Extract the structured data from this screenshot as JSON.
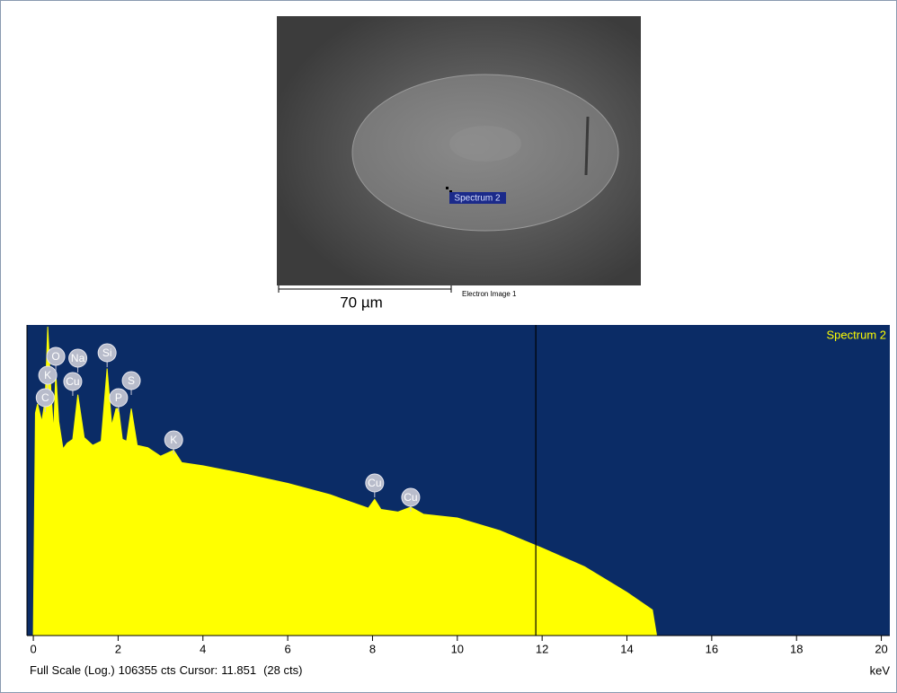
{
  "image": {
    "site_label": "Spectrum 2",
    "scale_bar": "70 µm",
    "caption": "Electron Image 1"
  },
  "chart_data": {
    "type": "area",
    "log_scale": true,
    "x": [
      0,
      0.05,
      0.1,
      0.2,
      0.28,
      0.34,
      0.42,
      0.48,
      0.53,
      0.6,
      0.7,
      0.8,
      0.93,
      1.05,
      1.2,
      1.4,
      1.6,
      1.74,
      1.85,
      1.95,
      2.01,
      2.1,
      2.2,
      2.31,
      2.45,
      2.7,
      3.0,
      3.31,
      3.5,
      4,
      5,
      6,
      7,
      7.9,
      8.05,
      8.2,
      8.6,
      8.9,
      9.2,
      10,
      11,
      12,
      13,
      14,
      14.6,
      14.7
    ],
    "series": [
      {
        "name": "Spectrum 2",
        "color": "#ffff00",
        "values": [
          1,
          4000,
          5600,
          2900,
          6600,
          100000,
          7900,
          2000,
          18000,
          2900,
          1050,
          1300,
          1500,
          7900,
          1600,
          1200,
          1400,
          21000,
          2500,
          4700,
          4700,
          1500,
          1400,
          4700,
          1200,
          1100,
          800,
          1000,
          630,
          560,
          410,
          290,
          190,
          115,
          160,
          110,
          100,
          120,
          92,
          80,
          50,
          26,
          13,
          5,
          2.6,
          1
        ]
      }
    ],
    "xlim": [
      -0.15,
      20.2
    ],
    "xticks": [
      0,
      2,
      4,
      6,
      8,
      10,
      12,
      14,
      16,
      18,
      20
    ],
    "x_label": "keV",
    "ylim": [
      1,
      106355
    ],
    "peaks": [
      {
        "label": "C",
        "energy": 0.28
      },
      {
        "label": "K",
        "energy": 0.34
      },
      {
        "label": "O",
        "energy": 0.53
      },
      {
        "label": "Na",
        "energy": 1.05
      },
      {
        "label": "Cu",
        "energy": 0.93
      },
      {
        "label": "Si",
        "energy": 1.74
      },
      {
        "label": "P",
        "energy": 2.01
      },
      {
        "label": "S",
        "energy": 2.31
      },
      {
        "label": "K",
        "energy": 3.31
      },
      {
        "label": "Cu",
        "energy": 8.05
      },
      {
        "label": "Cu",
        "energy": 8.9
      }
    ],
    "full_scale_label": "Full Scale (Log.)",
    "full_scale": 106355,
    "full_scale_unit": "cts",
    "cursor_label": "Cursor:",
    "cursor": 11.851,
    "cursor_counts": "(28 cts)",
    "background": "#0b2c66"
  }
}
